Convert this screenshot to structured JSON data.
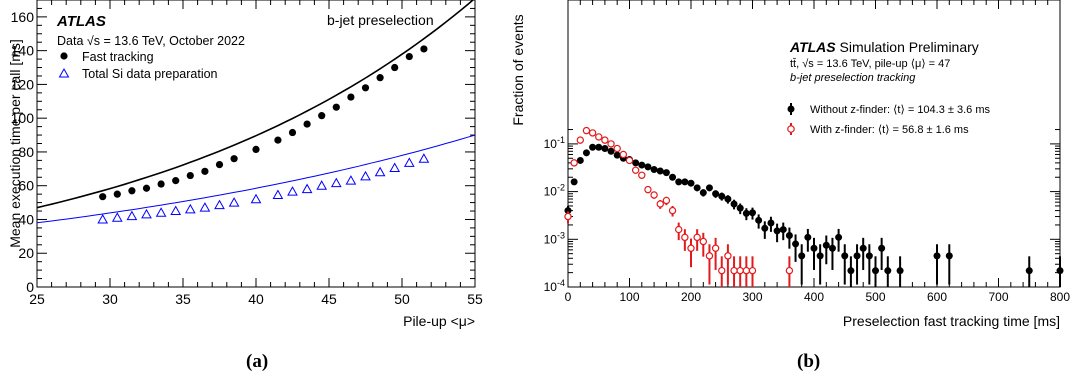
{
  "captions": {
    "a": "(a)",
    "b": "(b)"
  },
  "chart_data": [
    {
      "type": "scatter",
      "title": "b-jet preselection",
      "xlabel": "Pile-up <μ>",
      "ylabel": "Mean execution time per call [ms]",
      "xlim": [
        25,
        55
      ],
      "ylim": [
        0,
        170
      ],
      "xticks": [
        25,
        30,
        35,
        40,
        45,
        50,
        55
      ],
      "yticks": [
        0,
        20,
        40,
        60,
        80,
        100,
        120,
        140,
        160
      ],
      "grid": false,
      "legend_position": "top-left",
      "annotations": {
        "experiment": "ATLAS",
        "data_pre": "Data",
        "data_sqrt": "√s",
        "data_post": "= 13.6 TeV, October 2022"
      },
      "series": [
        {
          "name": "Fast tracking",
          "marker": "filled-circle",
          "color": "#000000",
          "x": [
            29.5,
            30.5,
            31.5,
            32.5,
            33.5,
            34.5,
            35.5,
            36.5,
            37.5,
            38.5,
            40.0,
            41.5,
            42.5,
            43.5,
            44.5,
            45.5,
            46.5,
            47.5,
            48.5,
            49.5,
            50.5,
            51.5
          ],
          "y": [
            53.5,
            55.0,
            57.0,
            58.5,
            61.0,
            63.0,
            66.0,
            68.5,
            72.5,
            76.0,
            81.5,
            87.0,
            91.5,
            96.5,
            101.5,
            106.5,
            112.5,
            118.0,
            124.0,
            130.0,
            136.5,
            141.0
          ],
          "fit": {
            "y25": 47.0,
            "y55": 171.0
          }
        },
        {
          "name": "Total Si data preparation",
          "marker": "open-triangle",
          "color": "#0000ff",
          "x": [
            29.5,
            30.5,
            31.5,
            32.5,
            33.5,
            34.5,
            35.5,
            36.5,
            37.5,
            38.5,
            40.0,
            41.5,
            42.5,
            43.5,
            44.5,
            45.5,
            46.5,
            47.5,
            48.5,
            49.5,
            50.5,
            51.5
          ],
          "y": [
            40.0,
            41.0,
            42.0,
            43.0,
            44.0,
            45.0,
            46.0,
            47.0,
            48.5,
            50.0,
            52.0,
            54.5,
            56.5,
            58.0,
            60.0,
            61.5,
            63.0,
            65.5,
            68.0,
            70.5,
            73.5,
            76.0
          ],
          "fit": {
            "y25": 38.0,
            "y55": 90.0
          }
        }
      ]
    },
    {
      "type": "scatter",
      "xlabel": "Preselection fast tracking time [ms]",
      "ylabel": "Fraction of events",
      "xlim": [
        0,
        800
      ],
      "ylog": true,
      "ylim": [
        0.0001,
        0.3
      ],
      "xticks": [
        0,
        100,
        200,
        300,
        400,
        500,
        600,
        700,
        800
      ],
      "yticks": [
        {
          "v": 0.0001,
          "base": "10",
          "exp": "-4"
        },
        {
          "v": 0.001,
          "base": "10",
          "exp": "-3"
        },
        {
          "v": 0.01,
          "base": "10",
          "exp": "-2"
        },
        {
          "v": 0.1,
          "base": "10",
          "exp": "-1"
        }
      ],
      "grid": false,
      "legend_position": "top-right",
      "annotations": {
        "experiment": "ATLAS",
        "experiment_suffix": "Simulation Preliminary",
        "line2": "tt̄, √s = 13.6 TeV, pile-up ⟨μ⟩ = 47",
        "line3": "b-jet preselection tracking"
      },
      "series": [
        {
          "name": "Without z-finder: ⟨t⟩ = 104.3 ± 3.6 ms",
          "marker": "filled-circle",
          "color": "#000000",
          "x": [
            0,
            10,
            20,
            30,
            40,
            50,
            60,
            70,
            80,
            90,
            100,
            110,
            120,
            130,
            140,
            150,
            160,
            170,
            180,
            190,
            200,
            210,
            220,
            230,
            240,
            250,
            260,
            270,
            280,
            290,
            300,
            310,
            320,
            330,
            340,
            350,
            360,
            370,
            380,
            390,
            400,
            410,
            420,
            430,
            440,
            450,
            460,
            470,
            480,
            490,
            500,
            510,
            520,
            540,
            600,
            620,
            750,
            800
          ],
          "y": [
            0.004,
            0.016,
            0.045,
            0.065,
            0.085,
            0.085,
            0.08,
            0.07,
            0.058,
            0.05,
            0.047,
            0.04,
            0.036,
            0.033,
            0.029,
            0.027,
            0.025,
            0.02,
            0.016,
            0.016,
            0.015,
            0.012,
            0.0095,
            0.012,
            0.009,
            0.008,
            0.007,
            0.0055,
            0.0045,
            0.0035,
            0.0036,
            0.0025,
            0.0017,
            0.0022,
            0.0015,
            0.0016,
            0.0012,
            0.0008,
            0.00045,
            0.0011,
            0.00065,
            0.00045,
            0.00075,
            0.00065,
            0.0011,
            0.00045,
            0.00022,
            0.00045,
            0.00065,
            0.00045,
            0.00022,
            0.00065,
            0.00022,
            0.00022,
            0.00045,
            0.00045,
            0.00022,
            0.00022
          ],
          "yerr_rel": [
            0.25,
            0.1,
            0.07,
            0.06,
            0.05,
            0.05,
            0.05,
            0.05,
            0.06,
            0.07,
            0.07,
            0.08,
            0.09,
            0.09,
            0.1,
            0.1,
            0.11,
            0.12,
            0.13,
            0.13,
            0.13,
            0.15,
            0.17,
            0.15,
            0.18,
            0.19,
            0.2,
            0.23,
            0.25,
            0.28,
            0.28,
            0.33,
            0.4,
            0.35,
            0.42,
            0.4,
            0.47,
            0.58,
            0.75,
            0.5,
            0.65,
            0.75,
            0.6,
            0.65,
            0.5,
            0.75,
            1.0,
            0.75,
            0.65,
            0.75,
            1.0,
            0.65,
            1.0,
            1.0,
            0.75,
            0.75,
            1.0,
            1.0
          ]
        },
        {
          "name": "With z-finder: ⟨t⟩ = 56.8 ± 1.6 ms",
          "marker": "open-circle",
          "color": "#e31a1c",
          "x": [
            0,
            10,
            20,
            30,
            40,
            50,
            60,
            70,
            80,
            90,
            100,
            110,
            120,
            130,
            140,
            150,
            160,
            170,
            180,
            190,
            200,
            210,
            220,
            230,
            240,
            250,
            260,
            270,
            280,
            290,
            300,
            360
          ],
          "y": [
            0.003,
            0.04,
            0.12,
            0.19,
            0.17,
            0.14,
            0.12,
            0.1,
            0.08,
            0.06,
            0.045,
            0.028,
            0.022,
            0.011,
            0.0085,
            0.0055,
            0.0065,
            0.004,
            0.0016,
            0.0011,
            0.00065,
            0.0011,
            0.0009,
            0.00045,
            0.00065,
            0.00022,
            0.00045,
            0.00022,
            0.00022,
            0.00022,
            0.00022,
            0.00022
          ],
          "yerr_rel": [
            0.28,
            0.09,
            0.05,
            0.04,
            0.04,
            0.05,
            0.05,
            0.06,
            0.06,
            0.07,
            0.08,
            0.1,
            0.11,
            0.15,
            0.17,
            0.21,
            0.2,
            0.25,
            0.4,
            0.48,
            0.6,
            0.48,
            0.52,
            0.75,
            0.65,
            1.0,
            0.75,
            1.0,
            1.0,
            1.0,
            1.0,
            1.0
          ]
        }
      ]
    }
  ]
}
